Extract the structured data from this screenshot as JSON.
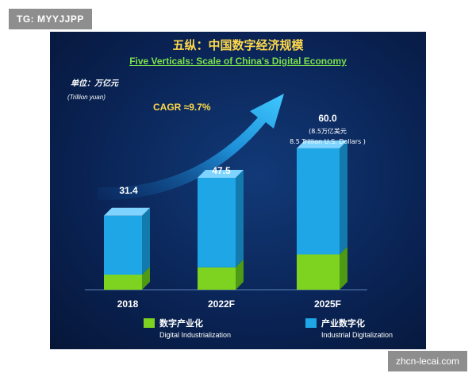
{
  "badge": {
    "text": "TG: MYYJJPP"
  },
  "watermark": {
    "text": "zhcn-lecai.com"
  },
  "colors": {
    "digital_industrialization": "#7ed321",
    "industrial_digitalization": "#1ea6e6",
    "arrow": "#1ea6e6"
  },
  "chart_data": {
    "type": "bar",
    "title": "五纵：中国数字经济规模",
    "subtitle": "Five Verticals: Scale of China's Digital Economy",
    "unit_cn": "单位：万亿元",
    "unit_en": "(Trillion yuan)",
    "categories": [
      "2018",
      "2022F",
      "2025F"
    ],
    "series": [
      {
        "name": "数字产业化",
        "name_en": "Digital Industrialization",
        "values": [
          6.4,
          9.5,
          15.0
        ]
      },
      {
        "name": "产业数字化",
        "name_en": "Industrial Digitalization",
        "values": [
          25.0,
          38.0,
          45.0
        ]
      }
    ],
    "totals": [
      "31.4",
      "47.5",
      "60.0"
    ],
    "annotations": {
      "cagr": "CAGR ≈9.7%",
      "note_cn": "(8.5万亿美元",
      "note_en": "8.5 Trillion U.S. Dollars )"
    },
    "ylim": [
      0,
      64
    ],
    "grid": false,
    "legend_position": "bottom"
  }
}
